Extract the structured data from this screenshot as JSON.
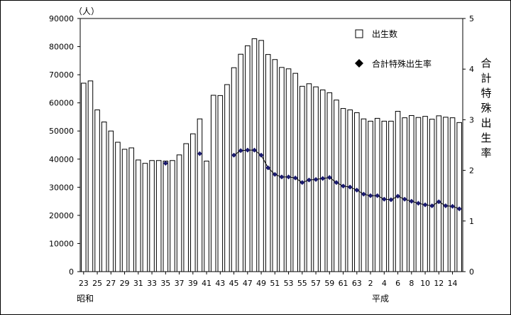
{
  "chart_data": {
    "type": "bar+line",
    "units": {
      "left": "（人）"
    },
    "x_labels": [
      "23",
      "25",
      "27",
      "29",
      "31",
      "33",
      "35",
      "37",
      "39",
      "41",
      "43",
      "45",
      "47",
      "49",
      "51",
      "53",
      "55",
      "57",
      "59",
      "61",
      "63",
      "2",
      "4",
      "6",
      "8",
      "10",
      "12",
      "14"
    ],
    "era_labels": [
      "昭和",
      "平成"
    ],
    "left_axis": {
      "ylim": [
        0,
        90000
      ],
      "ticks": [
        "0",
        "10000",
        "20000",
        "30000",
        "40000",
        "50000",
        "60000",
        "70000",
        "80000",
        "90000"
      ]
    },
    "right_axis": {
      "ylim": [
        0,
        5
      ],
      "ticks": [
        "0",
        "1",
        "2",
        "3",
        "4",
        "5"
      ],
      "label": "合計特殊出生率"
    },
    "series": [
      {
        "name": "出生数",
        "kind": "bar",
        "values": [
          67000,
          67800,
          57500,
          53200,
          50000,
          46000,
          43500,
          44000,
          39700,
          38500,
          39500,
          39500,
          39300,
          39500,
          41500,
          45500,
          49000,
          54300,
          39300,
          62700,
          62600,
          66500,
          72500,
          77300,
          80300,
          82800,
          82200,
          77200,
          75400,
          72600,
          72100,
          70500,
          65900,
          66800,
          65700,
          64600,
          63600,
          61000,
          58000,
          57500,
          56500,
          54300,
          53500,
          54500,
          53500,
          53500,
          57000,
          54700,
          55500,
          54800,
          55200,
          54200,
          55400,
          54900,
          54700,
          53000
        ]
      },
      {
        "name": "合計特殊出生率",
        "kind": "line",
        "marker": "diamond",
        "values": [
          null,
          null,
          null,
          null,
          null,
          null,
          null,
          null,
          null,
          null,
          null,
          null,
          2.14,
          null,
          null,
          null,
          null,
          2.33,
          null,
          null,
          null,
          null,
          2.3,
          2.39,
          2.4,
          2.4,
          2.3,
          2.05,
          1.92,
          1.87,
          1.87,
          1.85,
          1.76,
          1.81,
          1.82,
          1.84,
          1.86,
          1.76,
          1.69,
          1.67,
          1.61,
          1.53,
          1.5,
          1.5,
          1.43,
          1.42,
          1.49,
          1.43,
          1.39,
          1.35,
          1.32,
          1.3,
          1.38,
          1.3,
          1.29,
          1.24
        ]
      }
    ],
    "legend": {
      "placement": "top-right"
    }
  },
  "colors": {
    "bar_fill": "#ffffff",
    "bar_stroke": "#000000",
    "line": "#000000",
    "marker": "#1a1a6e",
    "legend_marker": "#000000"
  }
}
